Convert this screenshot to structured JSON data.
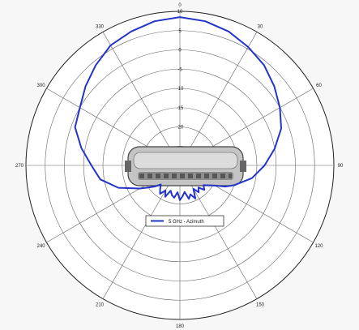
{
  "chart_data": {
    "type": "polar",
    "angle_labels": [
      "0",
      "30",
      "60",
      "90",
      "120",
      "150",
      "180",
      "210",
      "240",
      "270",
      "300",
      "330"
    ],
    "angles_deg": [
      0,
      30,
      60,
      90,
      120,
      150,
      180,
      210,
      240,
      270,
      300,
      330
    ],
    "radial_ticks": [
      10,
      5,
      0,
      -5,
      -10,
      -15,
      -20
    ],
    "rlim": [
      -30,
      10
    ],
    "radial_tick_labels": [
      "10",
      "5",
      "0",
      "-5",
      "-10",
      "-15",
      "-20"
    ],
    "series": [
      {
        "name": "5 GHz - Azimuth",
        "color": "#2434c8",
        "theta_deg": [
          0,
          10,
          20,
          30,
          40,
          50,
          60,
          70,
          80,
          90,
          100,
          110,
          115,
          120,
          125,
          130,
          135,
          140,
          145,
          150,
          155,
          160,
          165,
          170,
          175,
          180,
          185,
          190,
          195,
          200,
          205,
          210,
          215,
          220,
          225,
          230,
          235,
          240,
          245,
          250,
          260,
          270,
          280,
          290,
          300,
          310,
          320,
          330,
          340,
          350,
          360
        ],
        "gain_dbi": [
          8.5,
          8,
          7,
          5.5,
          4,
          2,
          0,
          -2,
          -5,
          -8,
          -11,
          -15,
          -17,
          -19.5,
          -21,
          -22,
          -21,
          -22.5,
          -21.5,
          -23,
          -20.5,
          -22,
          -21,
          -23,
          -22,
          -21,
          -23,
          -21.5,
          -22,
          -23,
          -21,
          -22.5,
          -21,
          -22,
          -23,
          -21.5,
          -20,
          -18,
          -16,
          -13,
          -9,
          -7,
          -4,
          -1,
          0,
          2,
          4,
          6,
          7,
          8,
          8.5
        ]
      }
    ],
    "legend": {
      "label": "5 GHz - Azimuth",
      "position": "bottom-center"
    },
    "grid": true
  },
  "colors": {
    "series": "#2434c8",
    "grid": "#666666",
    "background": "#f7f7f7"
  },
  "device_image": {
    "icon": "access-point-device"
  }
}
